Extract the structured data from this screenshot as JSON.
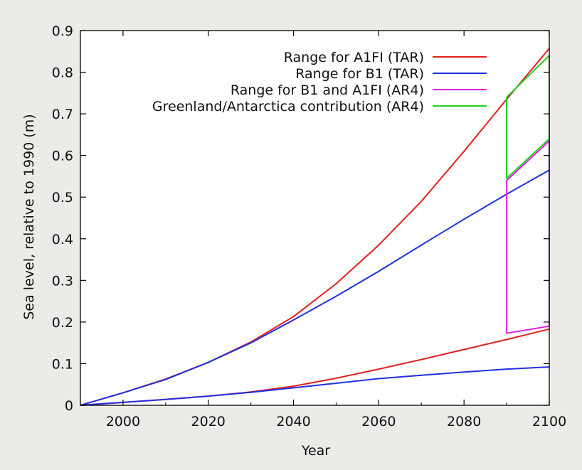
{
  "chart_data": {
    "type": "line",
    "xlabel": "Year",
    "ylabel": "Sea level, relative to 1990 (m)",
    "xlim": [
      1990,
      2100
    ],
    "ylim": [
      0,
      0.9
    ],
    "xticks": [
      "2000",
      "2020",
      "2040",
      "2060",
      "2080",
      "2100"
    ],
    "yticks": [
      "0",
      "0.1",
      "0.2",
      "0.3",
      "0.4",
      "0.5",
      "0.6",
      "0.7",
      "0.8",
      "0.9"
    ],
    "grid": false,
    "legend_position": "top-right",
    "legend": [
      {
        "label": "Range for A1FI (TAR)",
        "color": "#e02020"
      },
      {
        "label": "Range for B1 (TAR)",
        "color": "#2030e0"
      },
      {
        "label": "Range for B1 and A1FI (AR4)",
        "color": "#e020e0"
      },
      {
        "label": "Greenland/Antarctica contribution (AR4)",
        "color": "#20d020"
      }
    ],
    "series": [
      {
        "group": 0,
        "x": [
          1990,
          2000,
          2010,
          2020,
          2030,
          2040,
          2050,
          2060,
          2070,
          2080,
          2090,
          2100
        ],
        "y": [
          0,
          0.03,
          0.063,
          0.103,
          0.152,
          0.213,
          0.292,
          0.385,
          0.49,
          0.61,
          0.735,
          0.857
        ]
      },
      {
        "group": 0,
        "x": [
          1990,
          2000,
          2010,
          2020,
          2030,
          2040,
          2050,
          2060,
          2070,
          2080,
          2090,
          2100
        ],
        "y": [
          0,
          0.007,
          0.014,
          0.022,
          0.032,
          0.046,
          0.065,
          0.087,
          0.11,
          0.134,
          0.158,
          0.183
        ]
      },
      {
        "group": 1,
        "x": [
          1990,
          2000,
          2010,
          2020,
          2030,
          2040,
          2050,
          2060,
          2070,
          2080,
          2090,
          2100
        ],
        "y": [
          0,
          0.03,
          0.062,
          0.103,
          0.15,
          0.205,
          0.262,
          0.322,
          0.385,
          0.447,
          0.507,
          0.565
        ]
      },
      {
        "group": 1,
        "x": [
          1990,
          2000,
          2010,
          2020,
          2030,
          2040,
          2050,
          2060,
          2070,
          2080,
          2090,
          2100
        ],
        "y": [
          0,
          0.007,
          0.014,
          0.022,
          0.031,
          0.042,
          0.053,
          0.064,
          0.072,
          0.08,
          0.087,
          0.092
        ]
      },
      {
        "group": 2,
        "x": [
          2090,
          2090,
          2100,
          2100,
          2090
        ],
        "y": [
          0.54,
          0.173,
          0.19,
          0.635,
          0.54
        ]
      },
      {
        "group": 3,
        "x": [
          2090,
          2090,
          2100,
          2100,
          2090,
          2100
        ],
        "y": [
          0.545,
          0.74,
          0.84,
          0.64,
          0.545,
          0.64
        ]
      }
    ]
  }
}
